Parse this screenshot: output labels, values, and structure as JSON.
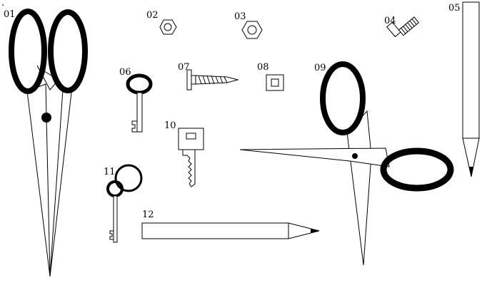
{
  "figure": {
    "dot_mark": ".",
    "labels": [
      "01",
      "02",
      "03",
      "04",
      "05",
      "06",
      "07",
      "08",
      "09",
      "10",
      "11",
      "12"
    ],
    "items": [
      {
        "id": "01",
        "object": "scissors-vertical"
      },
      {
        "id": "02",
        "object": "hex-nut"
      },
      {
        "id": "03",
        "object": "hex-nut"
      },
      {
        "id": "04",
        "object": "bolt"
      },
      {
        "id": "05",
        "object": "pencil-vertical"
      },
      {
        "id": "06",
        "object": "key-skeleton"
      },
      {
        "id": "07",
        "object": "screw"
      },
      {
        "id": "08",
        "object": "square-nut"
      },
      {
        "id": "09",
        "object": "scissors-open"
      },
      {
        "id": "10",
        "object": "key-flat"
      },
      {
        "id": "11",
        "object": "key-with-ring"
      },
      {
        "id": "12",
        "object": "pencil-horizontal"
      }
    ]
  }
}
